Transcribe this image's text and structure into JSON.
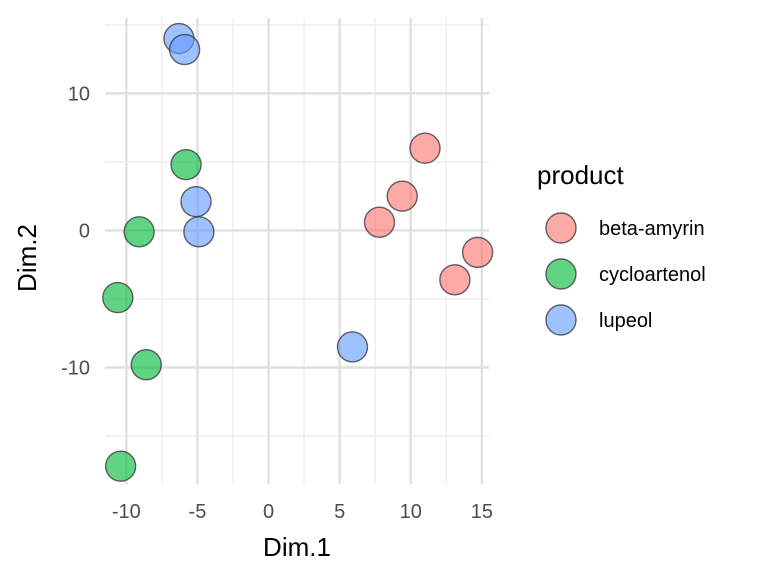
{
  "chart_data": {
    "type": "scatter",
    "title": "",
    "xlabel": "Dim.1",
    "ylabel": "Dim.2",
    "xlim": [
      -11.5,
      15.5
    ],
    "ylim": [
      -18.5,
      15.5
    ],
    "x_ticks": [
      -10,
      -5,
      0,
      5,
      10,
      15
    ],
    "y_ticks": [
      -10,
      0,
      10
    ],
    "x_tick_labels": [
      "-10",
      "-5",
      "0",
      "5",
      "10",
      "15"
    ],
    "y_tick_labels": [
      "-10",
      "0",
      "10"
    ],
    "grid": true,
    "legend": {
      "title": "product",
      "position": "right"
    },
    "series": [
      {
        "name": "beta-amyrin",
        "color": "#F8766D",
        "points": [
          {
            "x": 11.0,
            "y": 6.0
          },
          {
            "x": 9.4,
            "y": 2.5
          },
          {
            "x": 7.8,
            "y": 0.6
          },
          {
            "x": 14.7,
            "y": -1.6
          },
          {
            "x": 13.1,
            "y": -3.6
          }
        ]
      },
      {
        "name": "cycloartenol",
        "color": "#00BA38",
        "points": [
          {
            "x": -5.8,
            "y": 4.8
          },
          {
            "x": -9.1,
            "y": -0.1
          },
          {
            "x": -10.6,
            "y": -4.9
          },
          {
            "x": -8.6,
            "y": -9.8
          },
          {
            "x": -10.4,
            "y": -17.2
          }
        ]
      },
      {
        "name": "lupeol",
        "color": "#619CFF",
        "points": [
          {
            "x": -6.3,
            "y": 14.0
          },
          {
            "x": -5.9,
            "y": 13.2
          },
          {
            "x": -5.1,
            "y": 2.1
          },
          {
            "x": -4.9,
            "y": -0.1
          },
          {
            "x": 5.9,
            "y": -8.5
          }
        ]
      }
    ]
  }
}
